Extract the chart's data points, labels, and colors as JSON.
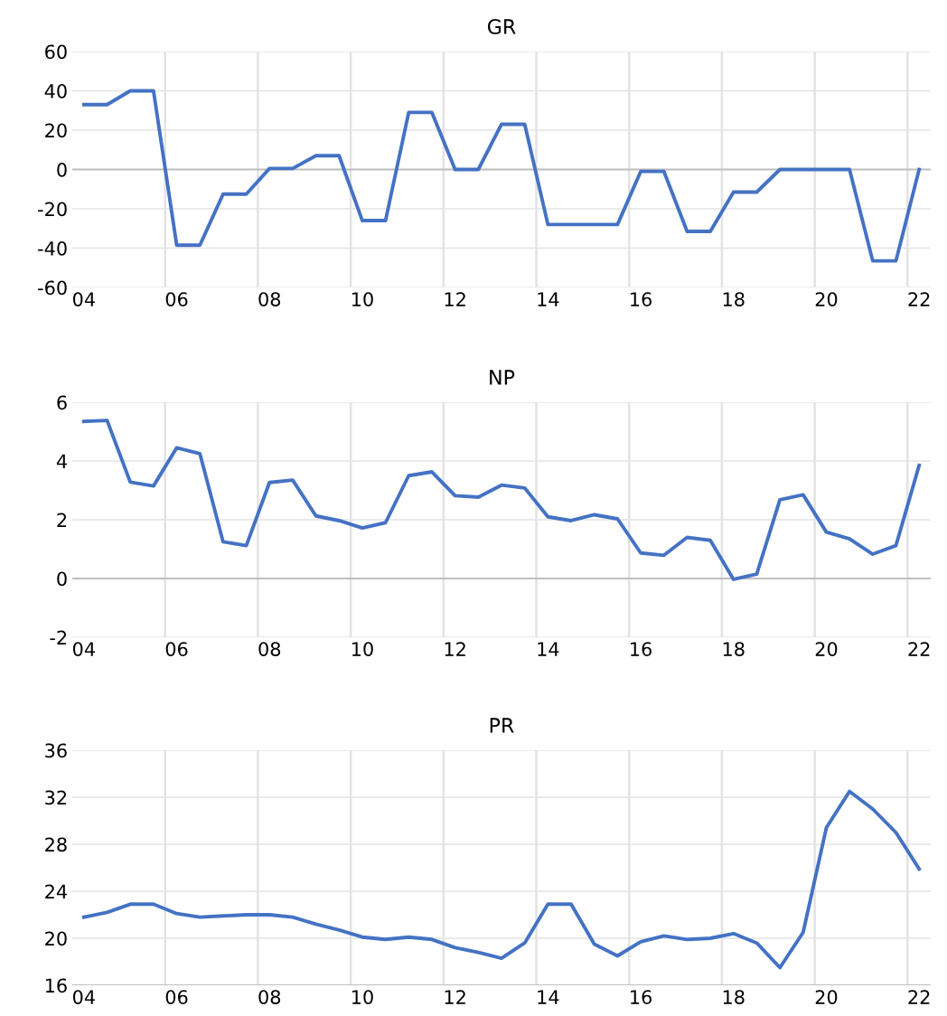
{
  "chart_data": [
    {
      "type": "line",
      "title": "GR",
      "categories": [
        "04",
        null,
        null,
        null,
        "06",
        null,
        null,
        null,
        "08",
        null,
        null,
        null,
        "10",
        null,
        null,
        null,
        "12",
        null,
        null,
        null,
        "14",
        null,
        null,
        null,
        "16",
        null,
        null,
        null,
        "18",
        null,
        null,
        null,
        "20",
        null,
        null,
        null,
        "22"
      ],
      "series": [
        {
          "color": "#4472c4",
          "values": [
            33,
            33,
            40,
            40,
            -38.5,
            -38.5,
            -12.5,
            -12.5,
            0.5,
            0.5,
            7,
            7,
            -26,
            -26,
            29,
            29,
            0,
            0,
            23,
            23,
            -28,
            -28,
            -28,
            -28,
            -1,
            -1,
            -31.5,
            -31.5,
            -11.5,
            -11.5,
            0,
            0,
            0,
            0,
            -46.5,
            -46.5,
            0
          ]
        }
      ],
      "ylim": [
        -60,
        60
      ],
      "yticks": [
        -60,
        -40,
        -20,
        0,
        20,
        40,
        60
      ],
      "grid": true,
      "marker": "none",
      "line_style": "solid"
    },
    {
      "type": "line",
      "title": "NP",
      "categories": [
        "04",
        null,
        null,
        null,
        "06",
        null,
        null,
        null,
        "08",
        null,
        null,
        null,
        "10",
        null,
        null,
        null,
        "12",
        null,
        null,
        null,
        "14",
        null,
        null,
        null,
        "16",
        null,
        null,
        null,
        "18",
        null,
        null,
        null,
        "20",
        null,
        null,
        null,
        "22"
      ],
      "series": [
        {
          "color": "#4472c4",
          "values": [
            5.35,
            5.38,
            3.28,
            3.15,
            4.45,
            4.25,
            1.25,
            1.12,
            3.27,
            3.35,
            2.13,
            1.97,
            1.72,
            1.9,
            3.5,
            3.63,
            2.82,
            2.77,
            3.18,
            3.08,
            2.1,
            1.97,
            2.17,
            2.03,
            0.87,
            0.79,
            1.4,
            1.3,
            -0.03,
            0.15,
            2.68,
            2.85,
            1.58,
            1.35,
            0.83,
            1.12,
            3.85
          ]
        }
      ],
      "ylim": [
        -2,
        6
      ],
      "yticks": [
        -2,
        0,
        2,
        4,
        6
      ],
      "grid": true,
      "marker": "none",
      "line_style": "solid"
    },
    {
      "type": "line",
      "title": "PR",
      "categories": [
        "04",
        null,
        null,
        null,
        "06",
        null,
        null,
        null,
        "08",
        null,
        null,
        null,
        "10",
        null,
        null,
        null,
        "12",
        null,
        null,
        null,
        "14",
        null,
        null,
        null,
        "16",
        null,
        null,
        null,
        "18",
        null,
        null,
        null,
        "20",
        null,
        null,
        null,
        "22"
      ],
      "series": [
        {
          "color": "#4472c4",
          "values": [
            21.8,
            22.2,
            22.9,
            22.9,
            22.1,
            21.8,
            21.9,
            22.0,
            22.0,
            21.8,
            21.2,
            20.7,
            20.1,
            19.9,
            20.1,
            19.9,
            19.2,
            18.8,
            18.3,
            19.6,
            22.9,
            22.9,
            19.5,
            18.5,
            19.7,
            20.2,
            19.9,
            20.0,
            20.4,
            19.6,
            17.5,
            20.5,
            29.4,
            32.5,
            31.0,
            29.0,
            25.9
          ]
        }
      ],
      "ylim": [
        16,
        36
      ],
      "yticks": [
        16,
        20,
        24,
        28,
        32,
        36
      ],
      "grid": true,
      "marker": "none",
      "line_style": "solid"
    }
  ]
}
